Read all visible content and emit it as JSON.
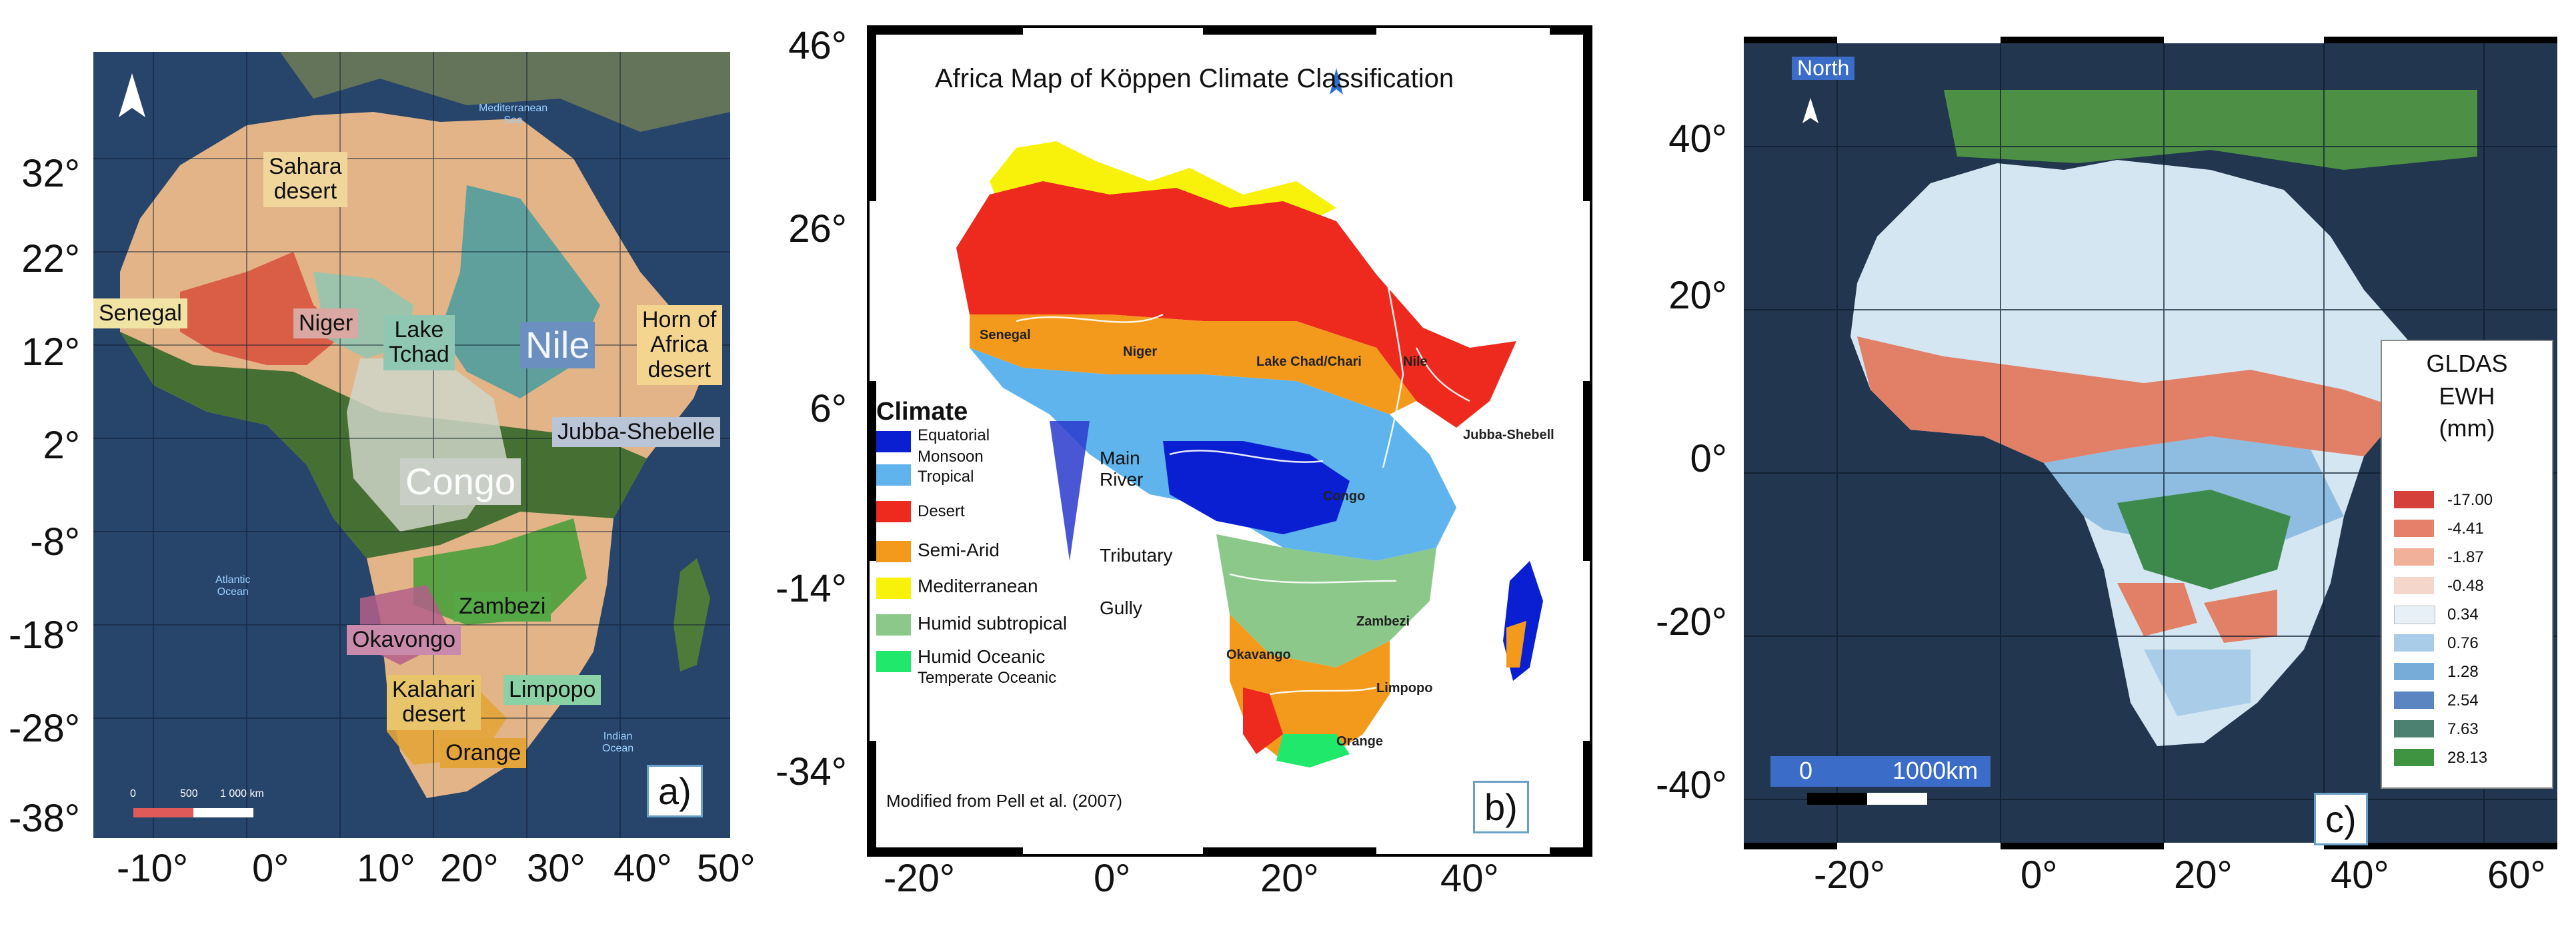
{
  "panel_a": {
    "letter": "a)",
    "y_ticks": [
      "32°",
      "22°",
      "12°",
      "2°",
      "-8°",
      "-18°",
      "-28°",
      "-38°"
    ],
    "x_ticks": [
      "-10°",
      "0°",
      "10°",
      "20°",
      "30°",
      "40°",
      "50°"
    ],
    "regions": {
      "sahara": "Sahara\ndesert",
      "senegal": "Senegal",
      "niger": "Niger",
      "lake_tchad": "Lake\nTchad",
      "nile": "Nile",
      "horn": "Horn of\nAfrica\ndesert",
      "jubba": "Jubba-Shebelle",
      "congo": "Congo",
      "zambezi": "Zambezi",
      "okavongo": "Okavongo",
      "kalahari": "Kalahari\ndesert",
      "limpopo": "Limpopo",
      "orange": "Orange"
    },
    "sea_labels": {
      "med": "Mediterranean\nSea",
      "atlantic": "Atlantic\nOcean",
      "indian": "Indian\nOcean"
    },
    "scale": {
      "s0": "0",
      "s1": "500",
      "s2": "1 000 km"
    },
    "colors": {
      "ocean": "#2b4a72",
      "sahara": "#e4b98a",
      "green": "#3f6d2e",
      "niger": "#d9533f",
      "tchad": "#8fc7b3",
      "nile": "#3f9ba1",
      "congo": "#cfd5c8",
      "zambezi": "#4a9f3b",
      "okavongo": "#b35f8a",
      "kalahari": "#e8c56a",
      "limpopo": "#8bd1a6",
      "orange": "#e3a43a",
      "senegal": "#f0e3a4",
      "horn": "#f4d58f"
    }
  },
  "panel_b": {
    "letter": "b)",
    "title": "Africa Map of Köppen Climate Classification",
    "y_ticks": [
      "46°",
      "26°",
      "6°",
      "-14°",
      "-34°"
    ],
    "x_ticks": [
      "-20°",
      "0°",
      "20°",
      "40°"
    ],
    "legend_title": "Climate",
    "legend": [
      {
        "label": "Equatorial",
        "color": "#0a1fd1"
      },
      {
        "label": "Monsoon",
        "color": null
      },
      {
        "label": "Tropical",
        "color": "#5fb4ee"
      },
      {
        "label": "Desert",
        "color": "#ee2a1e"
      },
      {
        "label": "Semi-Arid",
        "color": "#f39a1c"
      },
      {
        "label": "Mediterranean",
        "color": "#f8f20a"
      },
      {
        "label": "Humid subtropical",
        "color": "#8cc88a"
      },
      {
        "label": "Humid Oceanic",
        "color": "#1fe86a"
      },
      {
        "label": "Temperate Oceanic",
        "color": null
      }
    ],
    "river_legend": {
      "main": "Main\nRiver",
      "tributary": "Tributary",
      "gully": "Gully"
    },
    "source": "Modified from Pell et al. (2007)",
    "river_names": [
      "Senegal",
      "Niger",
      "Lake Chad/Chari",
      "Nile",
      "Jubba-Shebell",
      "Congo",
      "Zambezi",
      "Okavango",
      "Limpopo",
      "Orange"
    ]
  },
  "panel_c": {
    "letter": "c)",
    "north": "North",
    "y_ticks": [
      "40°",
      "20°",
      "0°",
      "-20°",
      "-40°"
    ],
    "x_ticks": [
      "-20°",
      "0°",
      "20°",
      "40°",
      "60°"
    ],
    "scale": {
      "s0": "0",
      "s1": "1000km"
    },
    "legend_title": "GLDAS\nEWH\n(mm)",
    "legend": [
      {
        "value": "-17.00",
        "color": "#d6403a"
      },
      {
        "value": "-4.41",
        "color": "#e6806a"
      },
      {
        "value": "-1.87",
        "color": "#f0b09a"
      },
      {
        "value": "-0.48",
        "color": "#f5d6cb"
      },
      {
        "value": "0.34",
        "color": "#e6f0f6"
      },
      {
        "value": "0.76",
        "color": "#a9cde8"
      },
      {
        "value": "1.28",
        "color": "#78acd8"
      },
      {
        "value": "2.54",
        "color": "#5b85c0"
      },
      {
        "value": "7.63",
        "color": "#4c8070"
      },
      {
        "value": "28.13",
        "color": "#3e9440"
      }
    ]
  }
}
